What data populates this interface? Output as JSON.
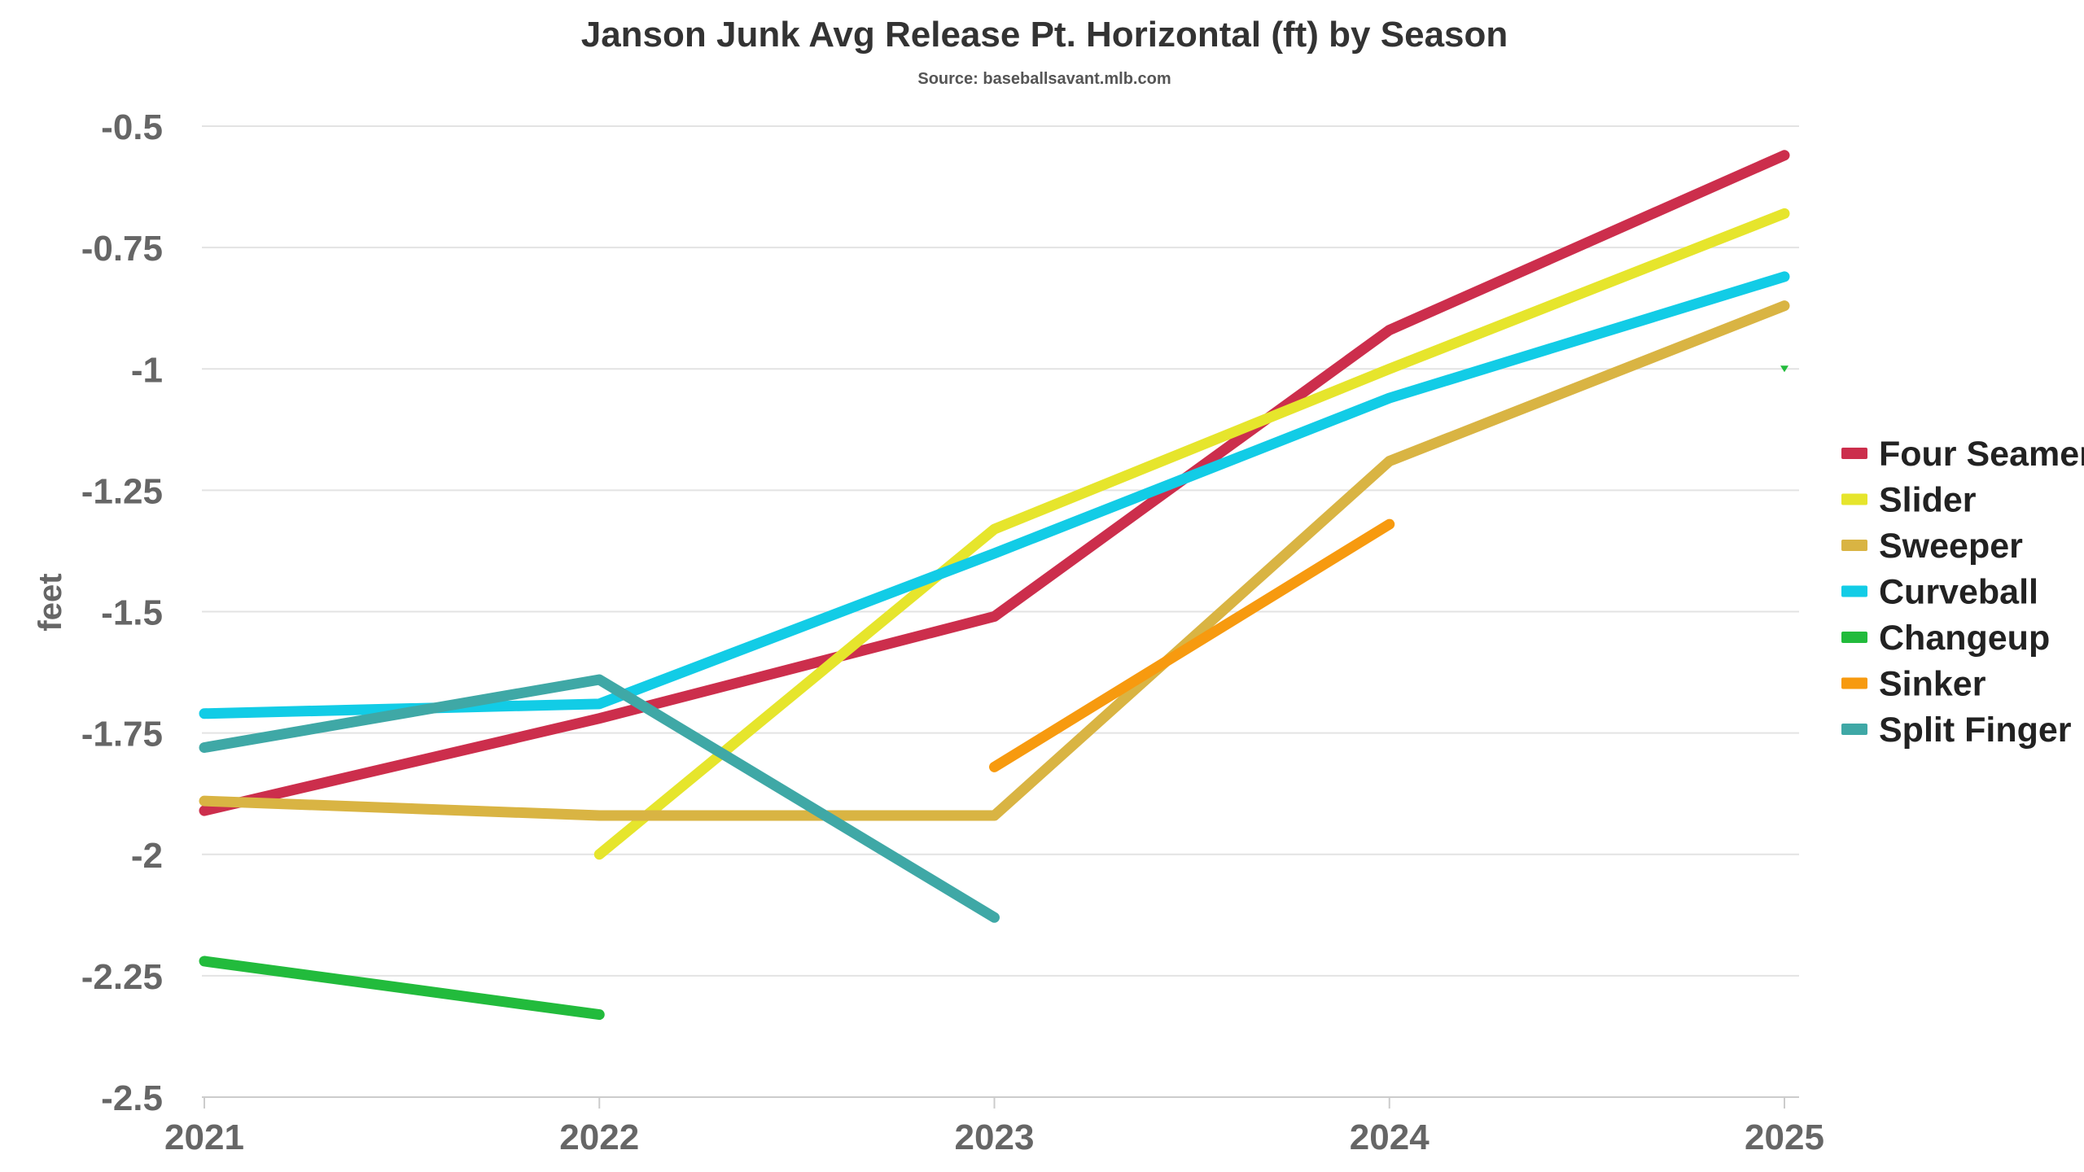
{
  "chart_data": {
    "type": "line",
    "title": "Janson Junk Avg Release Pt. Horizontal (ft) by Season",
    "subtitle": "Source: baseballsavant.mlb.com",
    "xlabel": "",
    "ylabel": "feet",
    "x": [
      2021,
      2022,
      2023,
      2024,
      2025
    ],
    "ylim": [
      -2.5,
      -0.5
    ],
    "yticks": [
      -0.5,
      -0.75,
      -1,
      -1.25,
      -1.5,
      -1.75,
      -2,
      -2.25,
      -2.5
    ],
    "ytick_labels": [
      "-0.5",
      "-0.75",
      "-1",
      "-1.25",
      "-1.5",
      "-1.75",
      "-2",
      "-2.25",
      "-2.5"
    ],
    "xtick_labels": [
      "2021",
      "2022",
      "2023",
      "2024",
      "2025"
    ],
    "grid": true,
    "legend_position": "right",
    "series": [
      {
        "name": "Four Seamer",
        "color": "#cc2e4c",
        "values": [
          -1.91,
          -1.72,
          -1.51,
          -0.92,
          -0.56
        ]
      },
      {
        "name": "Slider",
        "color": "#e6e52c",
        "values": [
          null,
          -2.0,
          -1.33,
          -1.0,
          -0.68
        ]
      },
      {
        "name": "Sweeper",
        "color": "#d9b443",
        "values": [
          -1.89,
          -1.92,
          -1.92,
          -1.19,
          -0.87
        ]
      },
      {
        "name": "Curveball",
        "color": "#12cce6",
        "values": [
          -1.71,
          -1.69,
          -1.38,
          -1.06,
          -0.81
        ]
      },
      {
        "name": "Changeup",
        "color": "#22bb3c",
        "values": [
          -2.22,
          -2.33,
          null,
          null,
          -1.0
        ]
      },
      {
        "name": "Sinker",
        "color": "#f79a0f",
        "values": [
          null,
          null,
          -1.82,
          -1.32,
          null
        ]
      },
      {
        "name": "Split Finger",
        "color": "#3fa8a6",
        "values": [
          -1.78,
          -1.64,
          -2.13,
          null,
          null
        ]
      }
    ]
  }
}
